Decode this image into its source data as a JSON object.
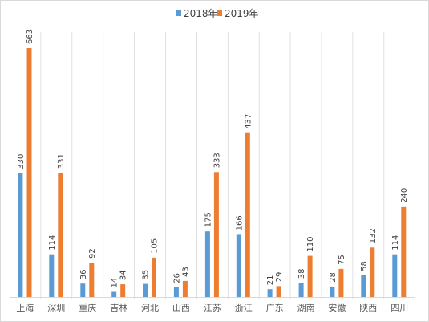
{
  "chart_data": {
    "type": "bar",
    "title": "",
    "xlabel": "",
    "ylabel": "",
    "ylim": [
      0,
      700
    ],
    "grid": false,
    "legend_position": "top",
    "categories": [
      "上海",
      "深圳",
      "重庆",
      "吉林",
      "河北",
      "山西",
      "江苏",
      "浙江",
      "广东",
      "湖南",
      "安徽",
      "陕西",
      "四川"
    ],
    "series": [
      {
        "name": "2018年",
        "color": "#5b9bd5",
        "values": [
          330,
          114,
          36,
          14,
          35,
          26,
          175,
          166,
          21,
          38,
          28,
          58,
          114
        ]
      },
      {
        "name": "2019年",
        "color": "#ed7d31",
        "values": [
          663,
          331,
          92,
          34,
          105,
          43,
          333,
          437,
          29,
          110,
          75,
          132,
          240
        ]
      }
    ]
  }
}
